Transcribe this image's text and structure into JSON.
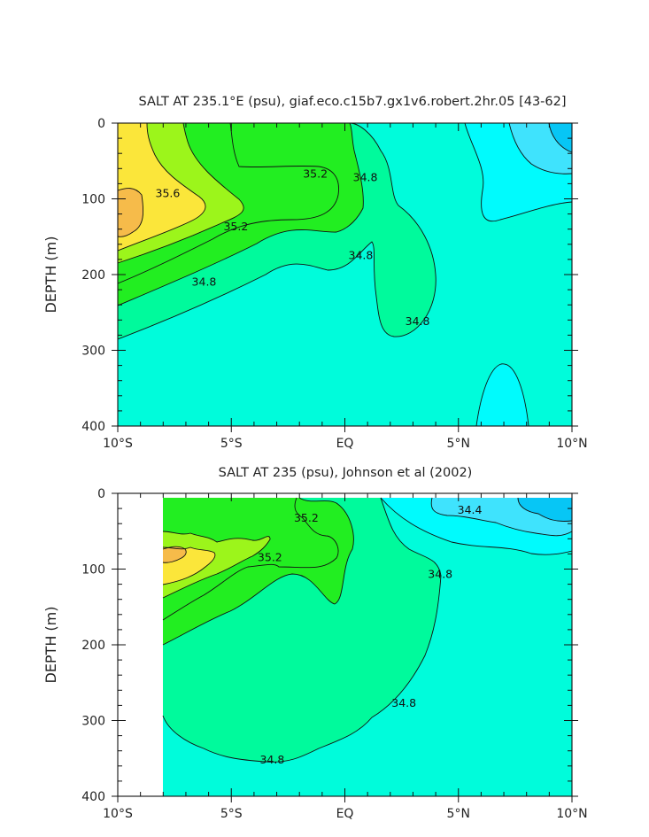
{
  "chart_data": [
    {
      "type": "heatmap",
      "subtype": "filled-contour",
      "title": "SALT AT 235.1°E (psu), giaf.eco.c15b7.gx1v6.robert.2hr.05 [43-62]",
      "ylabel": "DEPTH (m)",
      "xlabel": "",
      "x_ticks": [
        "10°S",
        "5°S",
        "EQ",
        "5°N",
        "10°N"
      ],
      "x_tick_values": [
        -10,
        -5,
        0,
        5,
        10
      ],
      "y_ticks": [
        "0",
        "100",
        "200",
        "300",
        "400"
      ],
      "y_tick_values": [
        0,
        100,
        200,
        300,
        400
      ],
      "xlim": [
        -10,
        10
      ],
      "ylim": [
        400,
        0
      ],
      "contour_levels_psu": [
        34.4,
        34.6,
        34.8,
        35.0,
        35.2,
        35.4,
        35.6,
        35.8
      ],
      "labeled_contours": [
        {
          "text": "35.6",
          "x": -7.8,
          "y": 93
        },
        {
          "text": "35.2",
          "x": -4.8,
          "y": 137
        },
        {
          "text": "35.2",
          "x": -1.3,
          "y": 67
        },
        {
          "text": "34.8",
          "x": -6.2,
          "y": 210
        },
        {
          "text": "34.8",
          "x": 0.9,
          "y": 72
        },
        {
          "text": "34.8",
          "x": 0.7,
          "y": 175
        },
        {
          "text": "34.8",
          "x": 3.2,
          "y": 262
        }
      ]
    },
    {
      "type": "heatmap",
      "subtype": "filled-contour",
      "title": "SALT AT 235 (psu), Johnson et al (2002)",
      "ylabel": "DEPTH (m)",
      "xlabel": "",
      "x_ticks": [
        "10°S",
        "5°S",
        "EQ",
        "5°N",
        "10°N"
      ],
      "x_tick_values": [
        -10,
        -5,
        0,
        5,
        10
      ],
      "y_ticks": [
        "0",
        "100",
        "200",
        "300",
        "400"
      ],
      "y_tick_values": [
        0,
        100,
        200,
        300,
        400
      ],
      "xlim": [
        -10,
        10
      ],
      "ylim": [
        400,
        0
      ],
      "data_x_range": [
        -8,
        10
      ],
      "data_y_range": [
        5,
        400
      ],
      "contour_levels_psu": [
        34.2,
        34.4,
        34.6,
        34.8,
        35.0,
        35.2,
        35.4,
        35.6,
        35.8
      ],
      "labeled_contours": [
        {
          "text": "35.2",
          "x": -1.7,
          "y": 33
        },
        {
          "text": "35.2",
          "x": -3.3,
          "y": 85
        },
        {
          "text": "34.4",
          "x": 5.5,
          "y": 22
        },
        {
          "text": "34.8",
          "x": 4.2,
          "y": 107
        },
        {
          "text": "34.8",
          "x": 2.6,
          "y": 277
        },
        {
          "text": "34.8",
          "x": -3.2,
          "y": 352
        }
      ]
    }
  ],
  "colors": {
    "s35_8": "#f6bb4a",
    "s35_6": "#fbe63a",
    "s35_4": "#9cf51b",
    "s35_2": "#22ee21",
    "s35_0": "#00fa9c",
    "s34_8": "#00fcdb",
    "s34_6": "#00fbfd",
    "s34_4": "#3fe3fd",
    "s34_2": "#07c6f5"
  }
}
